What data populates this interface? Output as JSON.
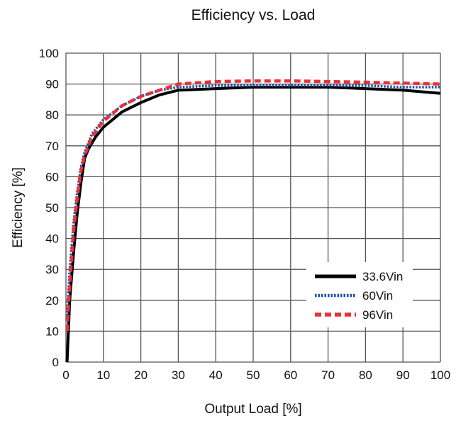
{
  "chart_data": {
    "type": "line",
    "title": "Efficiency vs. Load",
    "xlabel": "Output Load [%]",
    "ylabel": "Efficiency [%]",
    "xlim": [
      0,
      100
    ],
    "ylim": [
      0,
      100
    ],
    "xticks": [
      0,
      10,
      20,
      30,
      40,
      50,
      60,
      70,
      80,
      90,
      100
    ],
    "yticks": [
      0,
      10,
      20,
      30,
      40,
      50,
      60,
      70,
      80,
      90,
      100
    ],
    "grid": true,
    "legend_position": "bottom-right",
    "series": [
      {
        "name": "33.6Vin",
        "color": "#000000",
        "style": "solid",
        "x": [
          0.3,
          1,
          2,
          3,
          4,
          5,
          6,
          8,
          10,
          15,
          20,
          25,
          30,
          40,
          50,
          60,
          70,
          80,
          90,
          100
        ],
        "y": [
          0,
          20,
          35,
          48,
          58,
          66,
          69,
          73,
          76,
          81,
          84,
          86.5,
          88,
          88.5,
          89,
          89,
          89,
          88.5,
          88,
          87
        ]
      },
      {
        "name": "60Vin",
        "color": "#1f4fa8",
        "style": "dotted",
        "x": [
          0.3,
          1,
          2,
          3,
          4,
          5,
          7,
          10,
          15,
          20,
          25,
          30,
          40,
          50,
          60,
          70,
          80,
          90,
          100
        ],
        "y": [
          15,
          30,
          45,
          55,
          63,
          68,
          74,
          78.5,
          83,
          86,
          88,
          89,
          89.5,
          89.5,
          89.5,
          89.5,
          89.5,
          89,
          89
        ]
      },
      {
        "name": "96Vin",
        "color": "#e8313a",
        "style": "dashed",
        "x": [
          0.3,
          1,
          2,
          3,
          4,
          5,
          7,
          10,
          15,
          20,
          25,
          30,
          40,
          50,
          60,
          70,
          80,
          90,
          100
        ],
        "y": [
          10,
          25,
          42,
          53,
          62,
          67,
          73,
          78,
          83,
          86,
          88,
          90,
          90.8,
          91,
          91,
          90.8,
          90.6,
          90.3,
          90
        ]
      }
    ]
  }
}
